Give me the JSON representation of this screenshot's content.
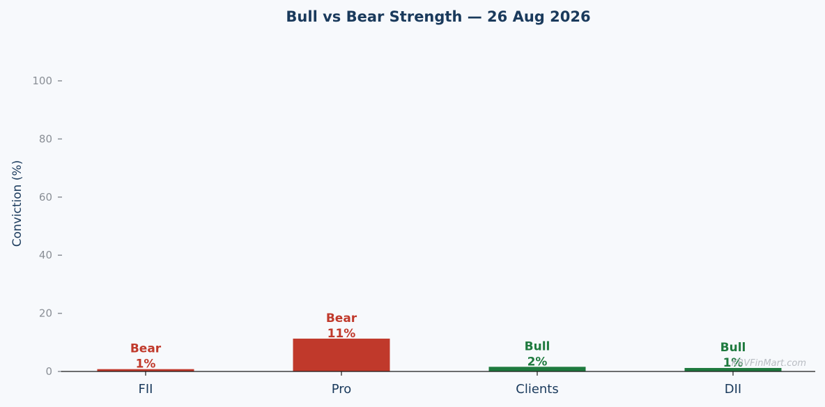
{
  "chart_data": {
    "type": "bar",
    "title": "Bull vs Bear Strength — 26 Aug 2026",
    "xlabel": "",
    "ylabel": "Conviction (%)",
    "ylim": [
      0,
      100
    ],
    "yticks": [
      0,
      20,
      40,
      60,
      80,
      100
    ],
    "grid": false,
    "categories": [
      "FII",
      "Pro",
      "Clients",
      "DII"
    ],
    "values": [
      0.8,
      11.3,
      1.6,
      1.2
    ],
    "sentiment": [
      "Bear",
      "Bear",
      "Bull",
      "Bull"
    ],
    "data_labels": [
      "1%",
      "11%",
      "2%",
      "1%"
    ],
    "colors": {
      "Bear": "#c0392b",
      "Bull": "#1e7a3e",
      "title": "#1a3a5c",
      "axis": "#1a1a1a",
      "tick": "#8a8f96"
    }
  },
  "watermark": "KRVFinMart.com"
}
